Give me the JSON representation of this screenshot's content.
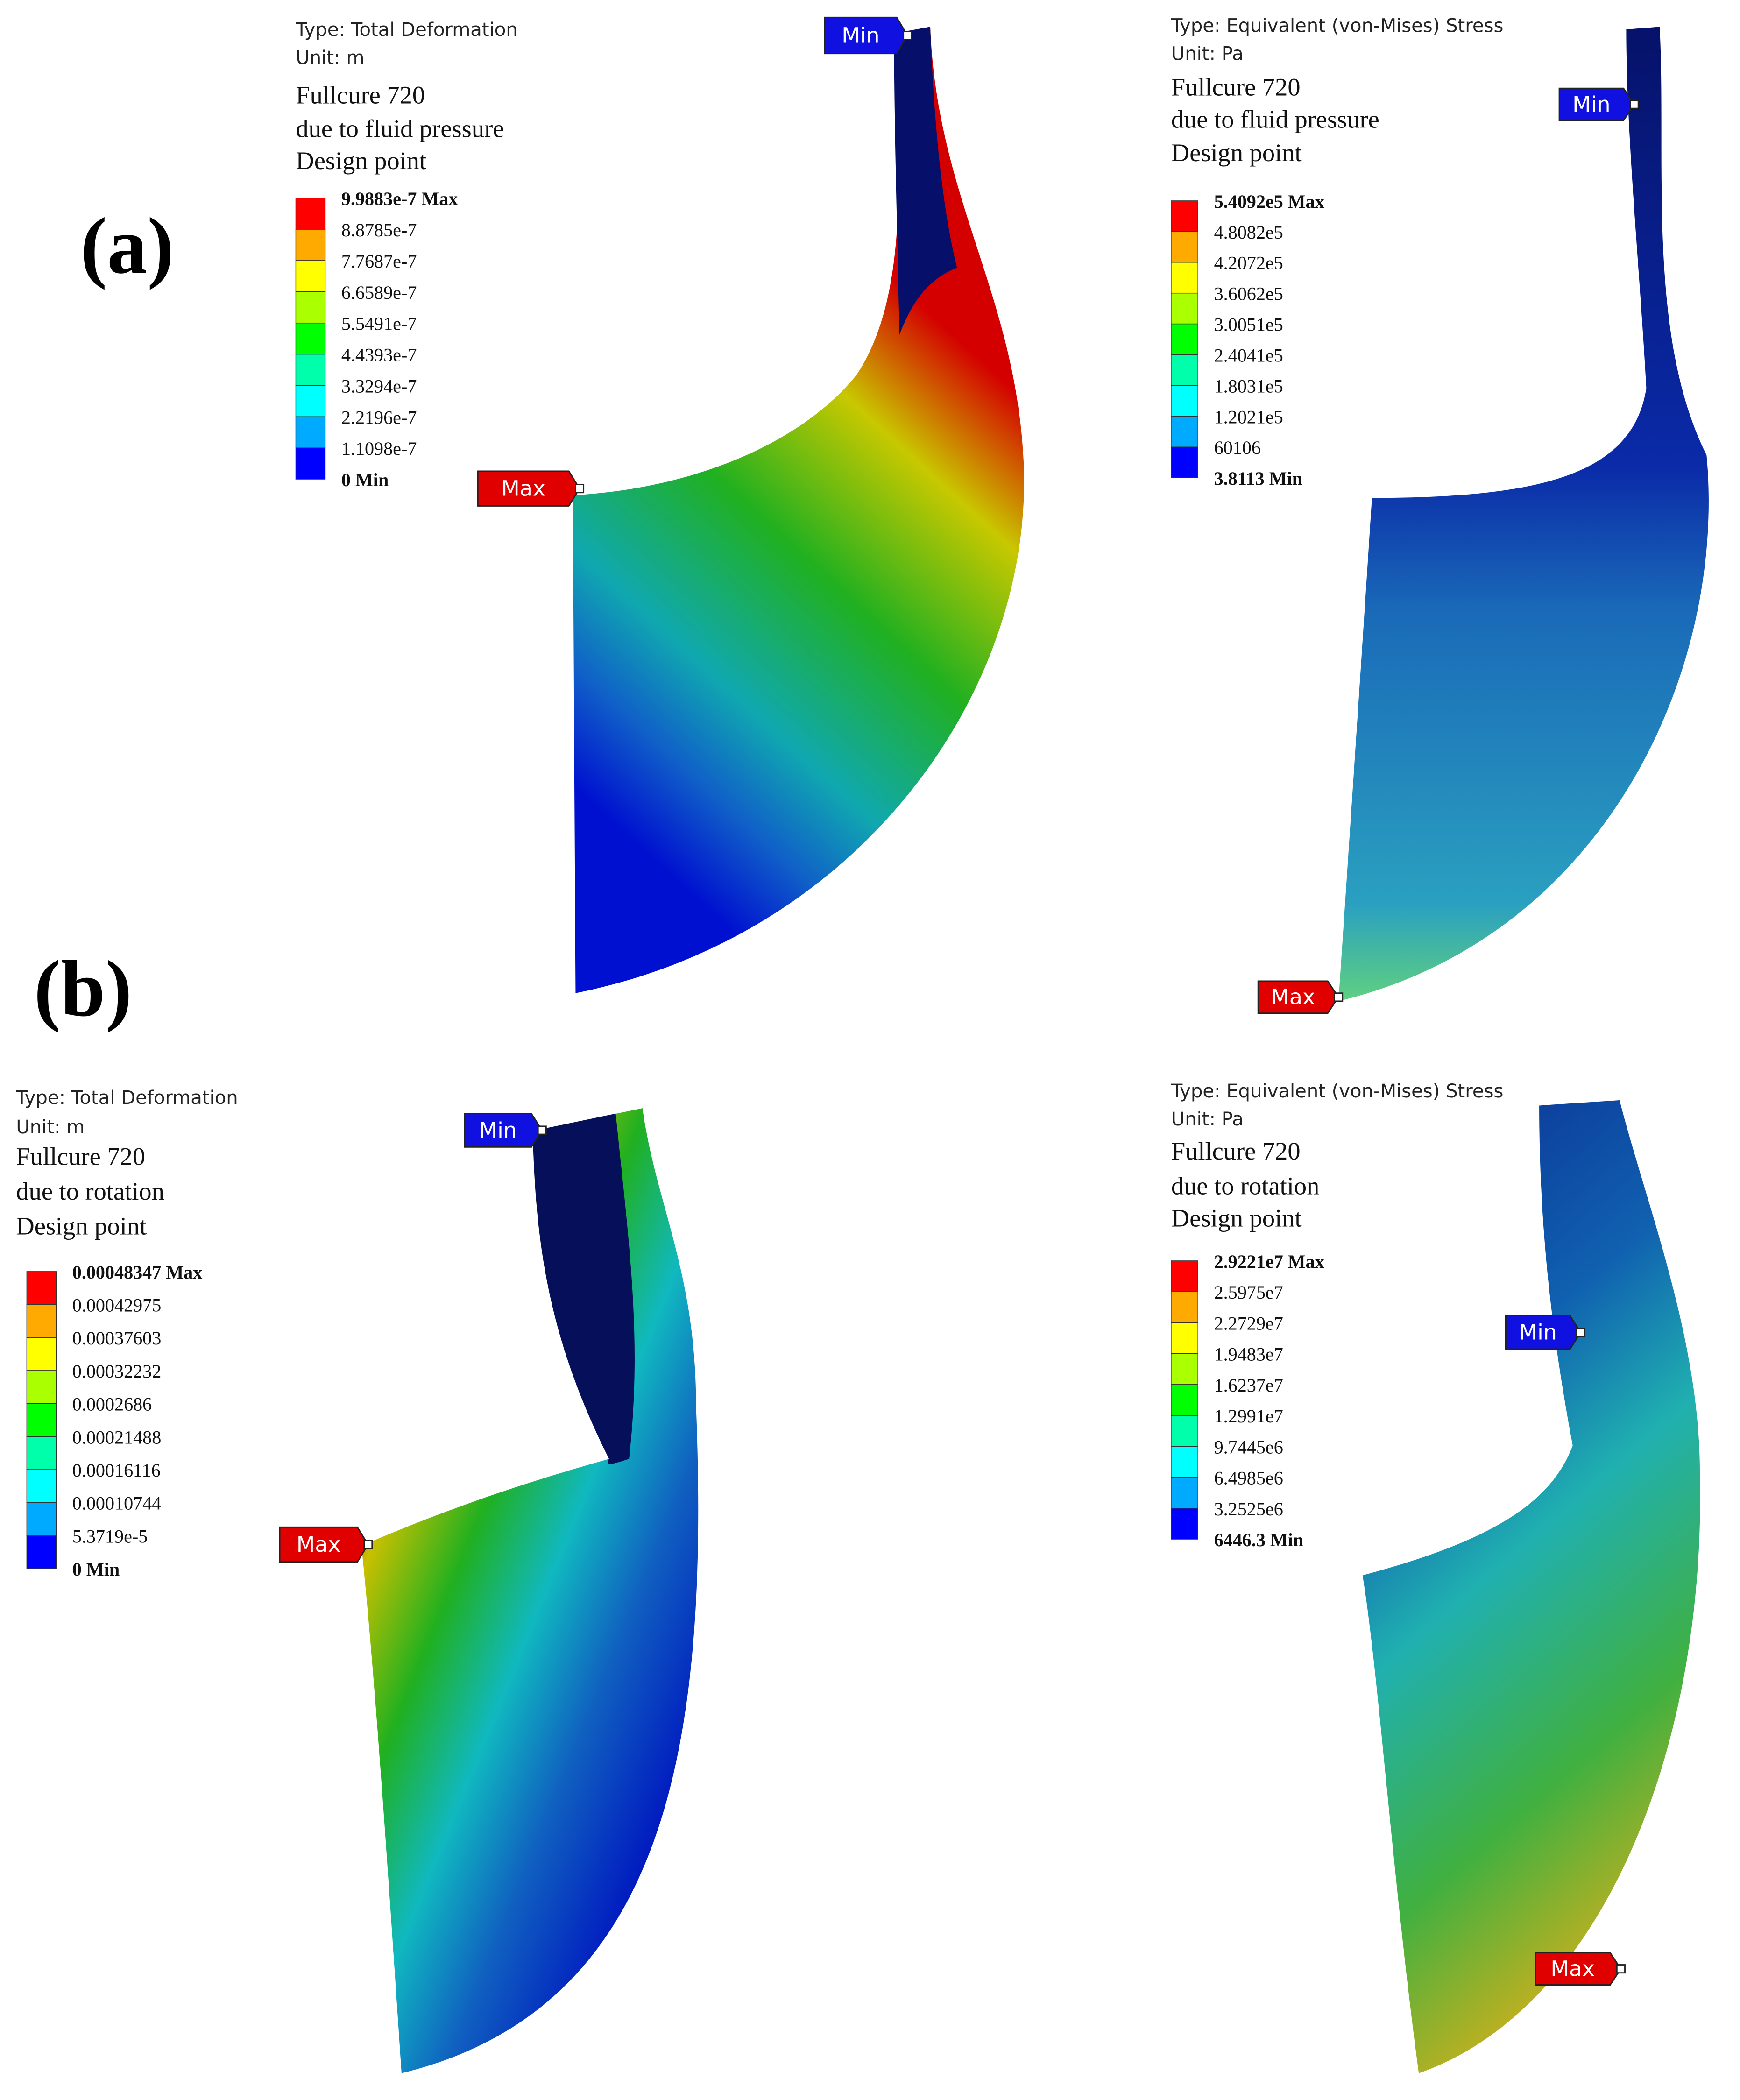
{
  "labels": [
    "(a)",
    "(b)"
  ],
  "plots": [
    {
      "type_line": "Type: Total Deformation",
      "unit_line": "Unit: m",
      "title": [
        "Fullcure 720",
        "due to fluid pressure",
        "Design point"
      ],
      "legend": [
        "9.9883e-7 Max",
        "8.8785e-7",
        "7.7687e-7",
        "6.6589e-7",
        "5.5491e-7",
        "4.4393e-7",
        "3.3294e-7",
        "2.2196e-7",
        "1.1098e-7",
        "0 Min"
      ],
      "max_tag": "Max",
      "min_tag": "Min"
    },
    {
      "type_line": "Type: Equivalent (von-Mises) Stress",
      "unit_line": "Unit: Pa",
      "title": [
        "Fullcure 720",
        "due to fluid pressure",
        "Design point"
      ],
      "legend": [
        "5.4092e5 Max",
        "4.8082e5",
        "4.2072e5",
        "3.6062e5",
        "3.0051e5",
        "2.4041e5",
        "1.8031e5",
        "1.2021e5",
        "60106",
        "3.8113 Min"
      ],
      "max_tag": "Max",
      "min_tag": "Min"
    },
    {
      "type_line": "Type: Total Deformation",
      "unit_line": "Unit: m",
      "title": [
        "Fullcure 720",
        "due to rotation",
        "Design point"
      ],
      "legend": [
        "0.00048347 Max",
        "0.00042975",
        "0.00037603",
        "0.00032232",
        "0.0002686",
        "0.00021488",
        "0.00016116",
        "0.00010744",
        "5.3719e-5",
        "0 Min"
      ],
      "max_tag": "Max",
      "min_tag": "Min"
    },
    {
      "type_line": "Type: Equivalent (von-Mises) Stress",
      "unit_line": "Unit: Pa",
      "title": [
        "Fullcure 720",
        "due to rotation",
        "Design point"
      ],
      "legend": [
        "2.9221e7 Max",
        "2.5975e7",
        "2.2729e7",
        "1.9483e7",
        "1.6237e7",
        "1.2991e7",
        "9.7445e6",
        "6.4985e6",
        "3.2525e6",
        "6446.3 Min"
      ],
      "max_tag": "Max",
      "min_tag": "Min"
    }
  ]
}
